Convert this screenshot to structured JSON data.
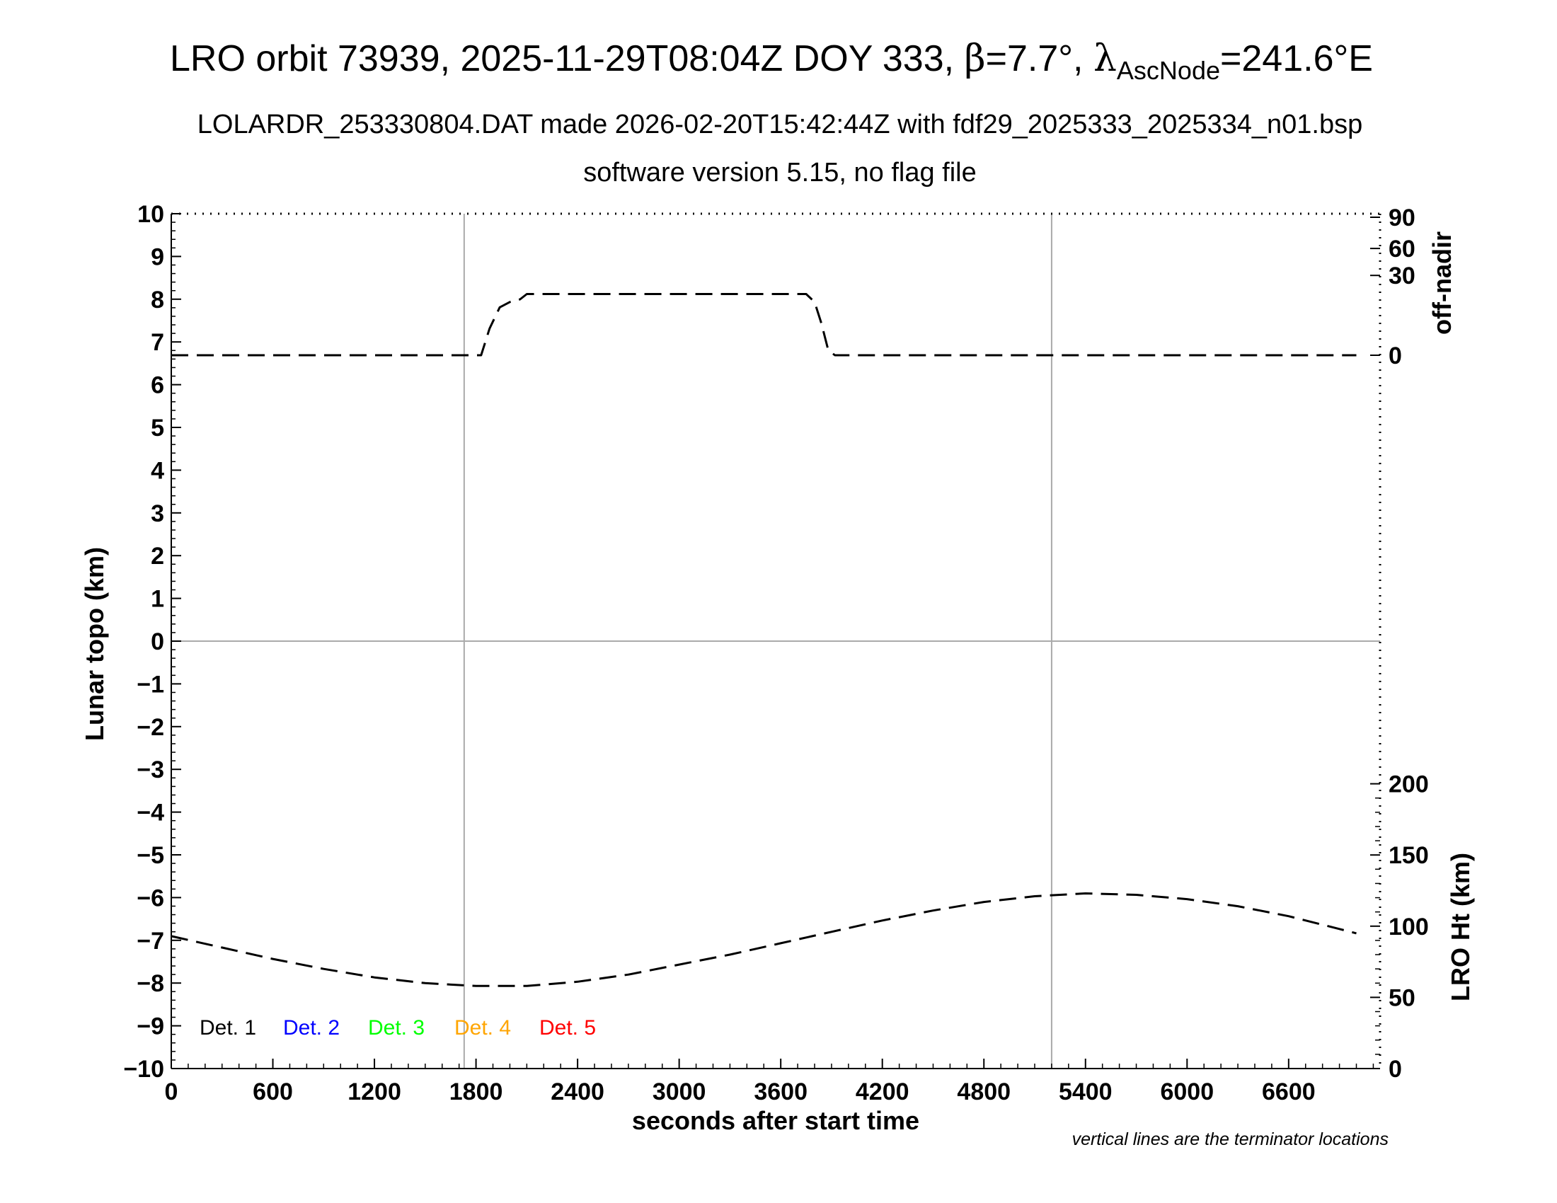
{
  "chart_data": {
    "type": "line",
    "title": {
      "prefix": "LRO orbit 73939, 2025-11-29T08:04Z DOY 333, ",
      "beta_symbol": "β",
      "beta_value": "=7.7°, ",
      "lambda_symbol": "λ",
      "lambda_subscript": "AscNode",
      "lambda_value": "=241.6°E"
    },
    "subtitle": "LOLARDR_253330804.DAT made 2026-02-20T15:42:44Z with fdf29_2025333_2025334_n01.bsp",
    "subtitle2": "software version 5.15, no flag file",
    "xlabel": "seconds after start time",
    "ylabel": "Lunar topo (km)",
    "y2_upper_label": "off-nadir",
    "y2_lower_label": "LRO Ht (km)",
    "footnote": "vertical lines are the terminator locations",
    "xlim": [
      0,
      7140
    ],
    "ylim": [
      -10,
      10
    ],
    "x_ticks": [
      "0",
      "600",
      "1200",
      "1800",
      "2400",
      "3000",
      "3600",
      "4200",
      "4800",
      "5400",
      "6000",
      "6600"
    ],
    "x_tick_values": [
      0,
      600,
      1200,
      1800,
      2400,
      3000,
      3600,
      4200,
      4800,
      5400,
      6000,
      6600
    ],
    "y_ticks": [
      "10",
      "9",
      "8",
      "7",
      "6",
      "5",
      "4",
      "3",
      "2",
      "1",
      "0",
      "−1",
      "−2",
      "−3",
      "−4",
      "−5",
      "−6",
      "−7",
      "−8",
      "−9",
      "−10"
    ],
    "y_tick_values": [
      10,
      9,
      8,
      7,
      6,
      5,
      4,
      3,
      2,
      1,
      0,
      -1,
      -2,
      -3,
      -4,
      -5,
      -6,
      -7,
      -8,
      -9,
      -10
    ],
    "offnadir_ticks": [
      "90",
      "60",
      "30",
      "0"
    ],
    "offnadir_tick_values": [
      90,
      60,
      30,
      0
    ],
    "height_ticks": [
      "200",
      "150",
      "100",
      "50",
      "0"
    ],
    "height_tick_values": [
      200,
      150,
      100,
      50,
      0
    ],
    "terminator_x": [
      1730,
      5200
    ],
    "grid": false,
    "legend_position": "bottom-left",
    "legend": [
      {
        "name": "Det. 1",
        "color": "#000000"
      },
      {
        "name": "Det. 2",
        "color": "#0000ff"
      },
      {
        "name": "Det. 3",
        "color": "#00ff00"
      },
      {
        "name": "Det. 4",
        "color": "#ffa500"
      },
      {
        "name": "Det. 5",
        "color": "#ff0000"
      }
    ],
    "series": [
      {
        "axis": "off-nadir",
        "style": "dashed",
        "color": "#000000",
        "x": [
          0,
          600,
          1200,
          1800,
          1830,
          1880,
          1940,
          2000,
          2060,
          2100,
          2200,
          3000,
          3750,
          3800,
          3840,
          3880,
          3920,
          4200,
          6000,
          7000
        ],
        "y": [
          0,
          0,
          0,
          0,
          0,
          10,
          18,
          20,
          21,
          23,
          23,
          23,
          23,
          20,
          12,
          2,
          0,
          0,
          0,
          0
        ]
      },
      {
        "axis": "height",
        "style": "dashed",
        "color": "#000000",
        "x": [
          0,
          300,
          600,
          900,
          1200,
          1500,
          1800,
          2100,
          2400,
          2700,
          3000,
          3300,
          3600,
          3900,
          4200,
          4500,
          4800,
          5100,
          5400,
          5700,
          6000,
          6300,
          6600,
          6900,
          7000
        ],
        "y": [
          93,
          85,
          77,
          70,
          64,
          60,
          58,
          58,
          61,
          66,
          73,
          80,
          88,
          96,
          104,
          111,
          117,
          121,
          123,
          122,
          119,
          114,
          107,
          98,
          95
        ]
      }
    ]
  }
}
